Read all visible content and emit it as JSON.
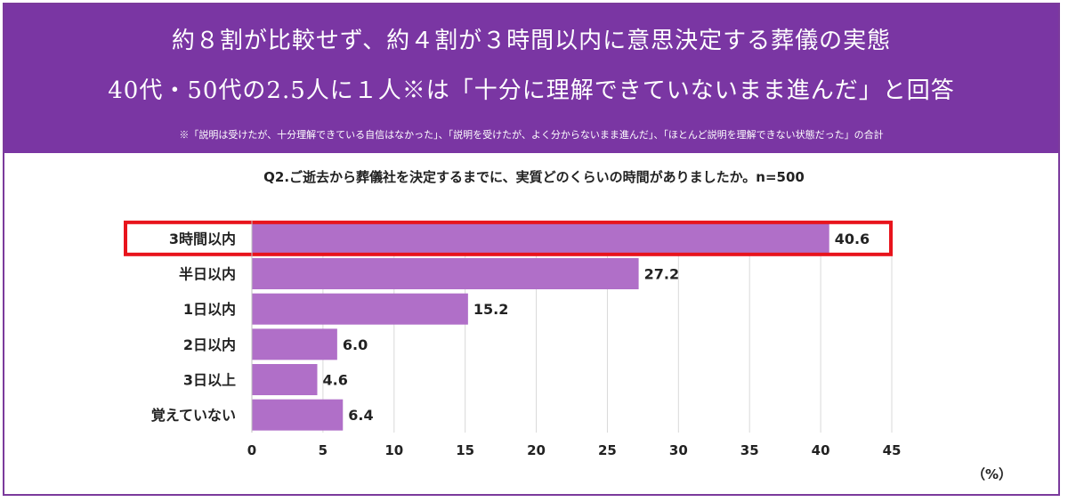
{
  "header": {
    "headline_1": "約８割が比較せず、約４割が３時間以内に意思決定する葬儀の実態",
    "headline_2": "40代・50代の2.5人に１人※は「十分に理解できていないまま進んだ」と回答",
    "footnote": "※「説明は受けたが、十分理解できている自信はなかった」、「説明を受けたが、よく分からないまま進んだ」、「ほとんど説明を理解できない状態だった」の合計"
  },
  "colors": {
    "banner": "#7a36a3",
    "bar": "#b06fc8",
    "highlight": "#e8141c"
  },
  "chart_data": {
    "type": "bar",
    "orientation": "horizontal",
    "title": "Q2.ご逝去から葬儀社を決定するまでに、実質どのくらいの時間がありましたか。n=500",
    "categories": [
      "3時間以内",
      "半日以内",
      "1日以内",
      "2日以内",
      "3日以上",
      "覚えていない"
    ],
    "values": [
      40.6,
      27.2,
      15.2,
      6.0,
      4.6,
      6.4
    ],
    "value_labels": [
      "40.6",
      "27.2",
      "15.2",
      "6.0",
      "4.6",
      "6.4"
    ],
    "xlim": [
      0,
      45
    ],
    "xticks": [
      "0",
      "5",
      "10",
      "15",
      "20",
      "25",
      "30",
      "35",
      "40",
      "45"
    ],
    "unit": "（%）",
    "grid": "vertical",
    "highlighted_category": "3時間以内"
  }
}
